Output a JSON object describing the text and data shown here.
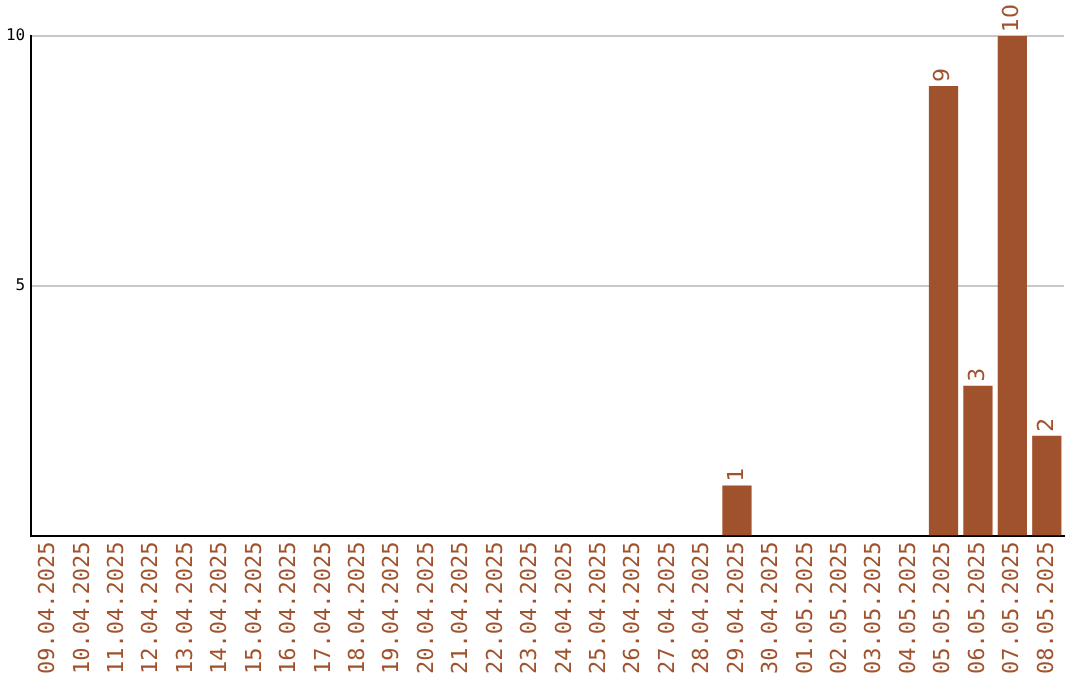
{
  "chart_data": {
    "type": "bar",
    "categories": [
      "09.04.2025",
      "10.04.2025",
      "11.04.2025",
      "12.04.2025",
      "13.04.2025",
      "14.04.2025",
      "15.04.2025",
      "16.04.2025",
      "17.04.2025",
      "18.04.2025",
      "19.04.2025",
      "20.04.2025",
      "21.04.2025",
      "22.04.2025",
      "23.04.2025",
      "24.04.2025",
      "25.04.2025",
      "26.04.2025",
      "27.04.2025",
      "28.04.2025",
      "29.04.2025",
      "30.04.2025",
      "01.05.2025",
      "02.05.2025",
      "03.05.2025",
      "04.05.2025",
      "05.05.2025",
      "06.05.2025",
      "07.05.2025",
      "08.05.2025"
    ],
    "values": [
      0,
      0,
      0,
      0,
      0,
      0,
      0,
      0,
      0,
      0,
      0,
      0,
      0,
      0,
      0,
      0,
      0,
      0,
      0,
      0,
      1,
      0,
      0,
      0,
      0,
      0,
      9,
      3,
      10,
      2
    ],
    "value_labels": [
      null,
      null,
      null,
      null,
      null,
      null,
      null,
      null,
      null,
      null,
      null,
      null,
      null,
      null,
      null,
      null,
      null,
      null,
      null,
      null,
      "1",
      null,
      null,
      null,
      null,
      null,
      "9",
      "3",
      "10",
      "2"
    ],
    "color": "#a0522d",
    "ylim": [
      0,
      10
    ],
    "yticks": [
      5,
      10
    ],
    "grid": "y",
    "legend": false
  }
}
